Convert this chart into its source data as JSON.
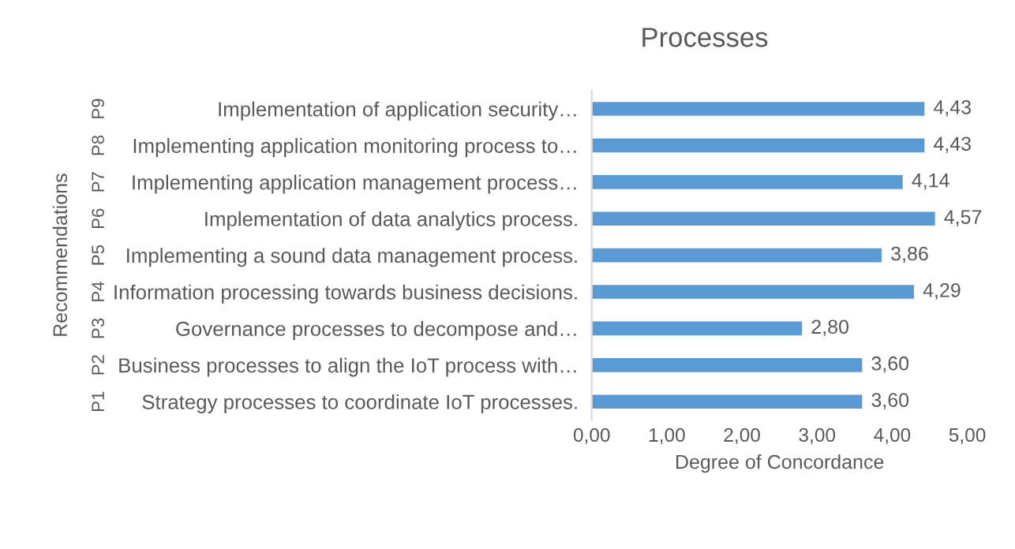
{
  "chart_data": {
    "type": "bar",
    "orientation": "horizontal",
    "title": "Processes",
    "xlabel": "Degree of Concordance",
    "ylabel": "Recommendations",
    "categories": [
      "Implementation of application security…",
      "Implementing application monitoring process to…",
      "Implementing application management process…",
      "Implementation of data analytics process.",
      "Implementing a sound data management process.",
      "Information processing towards business decisions.",
      "Governance processes to decompose and…",
      "Business processes to align the IoT process with…",
      "Strategy processes to coordinate IoT processes."
    ],
    "values": [
      4.43,
      4.43,
      4.14,
      4.57,
      3.86,
      4.29,
      2.8,
      3.6,
      3.6
    ],
    "value_labels": [
      "4,43",
      "4,43",
      "4,14",
      "4,57",
      "3,86",
      "4,29",
      "2,80",
      "3,60",
      "3,60"
    ],
    "color": "#5b9bd5",
    "xlim": [
      0,
      5
    ],
    "xticks": [
      {
        "value": 0,
        "label": "0,00"
      },
      {
        "value": 1,
        "label": "1,00"
      },
      {
        "value": 2,
        "label": "2,00"
      },
      {
        "value": 3,
        "label": "3,00"
      },
      {
        "value": 4,
        "label": "4,00"
      },
      {
        "value": 5,
        "label": "5,00"
      }
    ],
    "annotations": [
      "P9",
      "P8",
      "P7",
      "P6",
      "P5",
      "P4",
      "P3",
      "P2",
      "P1"
    ],
    "grid": false
  }
}
